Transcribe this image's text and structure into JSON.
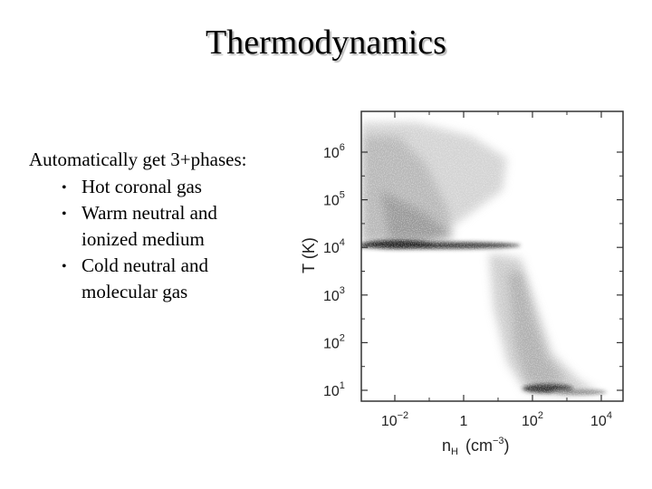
{
  "slide": {
    "title": "Thermodynamics",
    "intro": "Automatically get 3+phases:",
    "bullets": [
      {
        "line1": "Hot coronal gas",
        "line2": ""
      },
      {
        "line1": "Warm neutral and",
        "line2": "ionized medium"
      },
      {
        "line1": "Cold neutral and",
        "line2": "molecular gas"
      }
    ],
    "bullet_glyph": "•"
  },
  "figure": {
    "y_axis_label": "T (K)",
    "x_axis_label_main": "n",
    "x_axis_label_sub": "H",
    "x_axis_label_units": "(cm",
    "x_axis_label_units_exp": "−3",
    "x_axis_label_close": ")",
    "y_ticks": [
      {
        "base": "10",
        "exp": "1",
        "log": 1
      },
      {
        "base": "10",
        "exp": "2",
        "log": 2
      },
      {
        "base": "10",
        "exp": "3",
        "log": 3
      },
      {
        "base": "10",
        "exp": "4",
        "log": 4
      },
      {
        "base": "10",
        "exp": "5",
        "log": 5
      },
      {
        "base": "10",
        "exp": "6",
        "log": 6
      }
    ],
    "x_ticks": [
      {
        "base": "10",
        "exp": "−2",
        "log": -2
      },
      {
        "base": "1",
        "exp": "",
        "log": 0
      },
      {
        "base": "10",
        "exp": "2",
        "log": 2
      },
      {
        "base": "10",
        "exp": "4",
        "log": 4
      }
    ]
  }
}
